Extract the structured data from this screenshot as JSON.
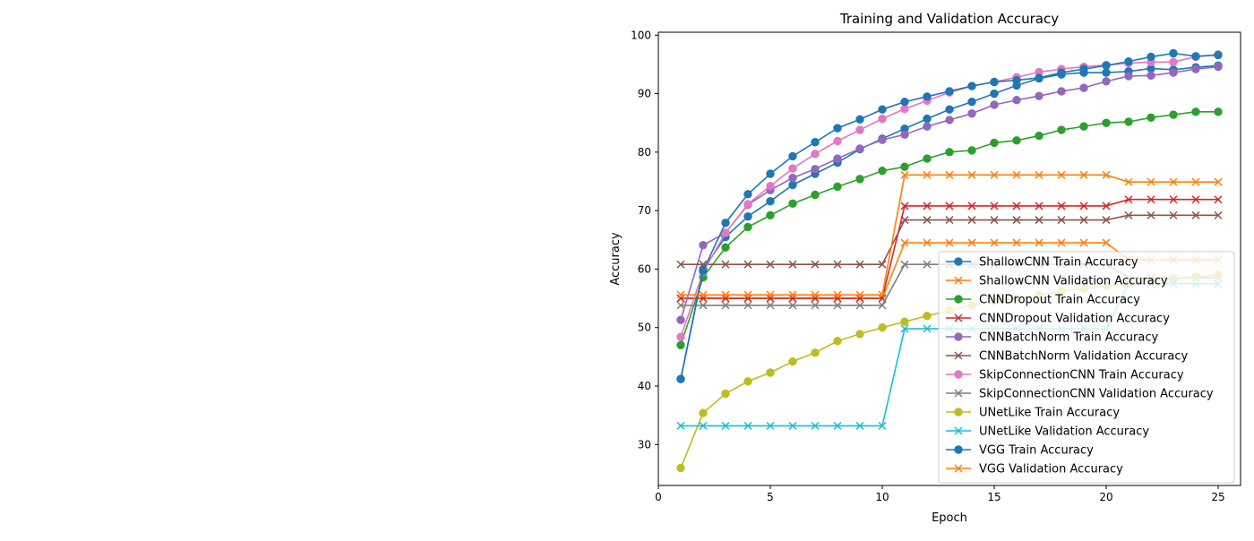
{
  "chart_data": {
    "type": "line",
    "title": "Training and Validation Accuracy",
    "xlabel": "Epoch",
    "ylabel": "Accuracy",
    "xlim": [
      0,
      26
    ],
    "ylim": [
      23,
      100.5
    ],
    "x_ticks": [
      0,
      5,
      10,
      15,
      20,
      25
    ],
    "y_ticks": [
      30,
      40,
      50,
      60,
      70,
      80,
      90,
      100
    ],
    "grid": false,
    "legend_position": "lower right",
    "x": [
      1,
      2,
      3,
      4,
      5,
      6,
      7,
      8,
      9,
      10,
      11,
      12,
      13,
      14,
      15,
      16,
      17,
      18,
      19,
      20,
      21,
      22,
      23,
      24,
      25
    ],
    "series": [
      {
        "name": "ShallowCNN Train Accuracy",
        "color": "#1f77b4",
        "marker": "circle",
        "values": [
          41.2,
          60.0,
          65.5,
          69.0,
          71.6,
          74.4,
          76.3,
          78.2,
          80.5,
          82.3,
          84.0,
          85.7,
          87.3,
          88.6,
          90.0,
          91.4,
          92.6,
          93.3,
          93.6,
          93.6,
          93.8,
          94.3,
          94.1,
          94.5,
          94.8
        ]
      },
      {
        "name": "ShallowCNN Validation Accuracy",
        "color": "#ff7f0e",
        "marker": "x",
        "values": [
          55.0,
          55.0,
          55.0,
          55.0,
          55.0,
          55.0,
          55.0,
          55.0,
          55.0,
          55.0,
          64.5,
          64.5,
          64.5,
          64.5,
          64.5,
          64.5,
          64.5,
          64.5,
          64.5,
          64.5,
          61.6,
          61.6,
          61.6,
          61.6,
          61.6
        ]
      },
      {
        "name": "CNNDropout Train Accuracy",
        "color": "#2ca02c",
        "marker": "circle",
        "values": [
          47.0,
          58.6,
          63.7,
          67.2,
          69.2,
          71.2,
          72.7,
          74.1,
          75.4,
          76.8,
          77.5,
          78.9,
          80.0,
          80.3,
          81.6,
          82.0,
          82.8,
          83.8,
          84.4,
          85.0,
          85.2,
          85.9,
          86.4,
          86.9,
          86.9
        ]
      },
      {
        "name": "CNNDropout Validation Accuracy",
        "color": "#d62728",
        "marker": "x",
        "values": [
          55.0,
          55.0,
          55.0,
          55.0,
          55.0,
          55.0,
          55.0,
          55.0,
          55.0,
          55.0,
          70.8,
          70.8,
          70.8,
          70.8,
          70.8,
          70.8,
          70.8,
          70.8,
          70.8,
          70.8,
          71.9,
          71.9,
          71.9,
          71.9,
          71.9
        ]
      },
      {
        "name": "CNNBatchNorm Train Accuracy",
        "color": "#9467bd",
        "marker": "circle",
        "values": [
          51.3,
          64.1,
          66.2,
          71.0,
          73.5,
          75.6,
          77.1,
          78.9,
          80.6,
          82.1,
          83.0,
          84.4,
          85.5,
          86.6,
          88.1,
          88.9,
          89.6,
          90.4,
          91.0,
          92.1,
          93.0,
          93.1,
          93.6,
          94.2,
          94.6
        ]
      },
      {
        "name": "CNNBatchNorm Validation Accuracy",
        "color": "#8c564b",
        "marker": "x",
        "values": [
          60.8,
          60.8,
          60.8,
          60.8,
          60.8,
          60.8,
          60.8,
          60.8,
          60.8,
          60.8,
          68.4,
          68.4,
          68.4,
          68.4,
          68.4,
          68.4,
          68.4,
          68.4,
          68.4,
          68.4,
          69.2,
          69.2,
          69.2,
          69.2,
          69.2
        ]
      },
      {
        "name": "SkipConnectionCNN Train Accuracy",
        "color": "#e377c2",
        "marker": "circle",
        "values": [
          48.4,
          59.5,
          66.2,
          71.1,
          74.2,
          77.2,
          79.7,
          81.9,
          83.8,
          85.7,
          87.4,
          88.8,
          90.2,
          91.3,
          92.0,
          92.8,
          93.7,
          94.2,
          94.6,
          94.9,
          95.2,
          95.4,
          95.4,
          96.3,
          96.7
        ]
      },
      {
        "name": "SkipConnectionCNN Validation Accuracy",
        "color": "#7f7f7f",
        "marker": "x",
        "values": [
          53.8,
          53.8,
          53.8,
          53.8,
          53.8,
          53.8,
          53.8,
          53.8,
          53.8,
          53.8,
          60.8,
          60.8,
          60.8,
          60.8,
          60.8,
          60.8,
          60.8,
          60.8,
          60.8,
          60.8,
          58.5,
          58.5,
          58.5,
          58.5,
          58.5
        ]
      },
      {
        "name": "UNetLike Train Accuracy",
        "color": "#bcbd22",
        "marker": "circle",
        "values": [
          26.0,
          35.4,
          38.7,
          40.8,
          42.3,
          44.2,
          45.7,
          47.7,
          48.9,
          50.0,
          51.0,
          52.0,
          52.9,
          53.8,
          54.5,
          55.0,
          55.6,
          56.2,
          56.7,
          57.1,
          57.6,
          58.0,
          58.3,
          58.7,
          59.0
        ]
      },
      {
        "name": "UNetLike Validation Accuracy",
        "color": "#17becf",
        "marker": "x",
        "values": [
          33.2,
          33.2,
          33.2,
          33.2,
          33.2,
          33.2,
          33.2,
          33.2,
          33.2,
          33.2,
          49.8,
          49.8,
          49.8,
          49.8,
          49.8,
          49.8,
          49.8,
          49.8,
          49.8,
          49.8,
          57.5,
          57.5,
          57.5,
          57.5,
          57.5
        ]
      },
      {
        "name": "VGG Train Accuracy",
        "color": "#1f77b4",
        "marker": "circle",
        "values": [
          41.2,
          59.7,
          67.9,
          72.8,
          76.3,
          79.3,
          81.7,
          84.1,
          85.6,
          87.3,
          88.6,
          89.5,
          90.4,
          91.3,
          92.0,
          92.3,
          92.7,
          93.6,
          94.2,
          94.8,
          95.5,
          96.3,
          96.9,
          96.4,
          96.6
        ]
      },
      {
        "name": "VGG Validation Accuracy",
        "color": "#ff7f0e",
        "marker": "x",
        "values": [
          55.6,
          55.6,
          55.6,
          55.6,
          55.6,
          55.6,
          55.6,
          55.6,
          55.6,
          55.6,
          76.1,
          76.1,
          76.1,
          76.1,
          76.1,
          76.1,
          76.1,
          76.1,
          76.1,
          76.1,
          74.9,
          74.9,
          74.9,
          74.9,
          74.9
        ]
      }
    ]
  }
}
